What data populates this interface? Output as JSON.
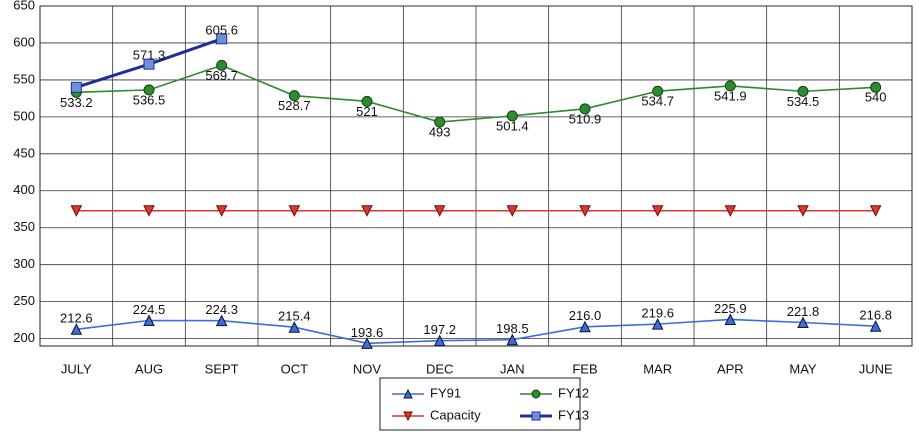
{
  "chart_data": {
    "type": "line",
    "categories": [
      "JULY",
      "AUG",
      "SEPT",
      "OCT",
      "NOV",
      "DEC",
      "JAN",
      "FEB",
      "MAR",
      "APR",
      "MAY",
      "JUNE"
    ],
    "series": [
      {
        "name": "FY91",
        "color": "#3a6fd8",
        "marker": "triangle",
        "values": [
          212.6,
          224.5,
          224.3,
          215.4,
          193.6,
          197.2,
          198.5,
          216.0,
          219.6,
          225.9,
          221.8,
          216.8
        ],
        "value_labels": [
          "212.6",
          "224.5",
          "224.3",
          "215.4",
          "193.6",
          "197.2",
          "198.5",
          "216.0",
          "219.6",
          "225.9",
          "221.8",
          "216.8"
        ]
      },
      {
        "name": "FY12",
        "color": "#2e8b2e",
        "marker": "circle",
        "values": [
          533.2,
          536.5,
          569.7,
          528.7,
          521,
          493,
          501.4,
          510.9,
          534.7,
          541.9,
          534.5,
          540
        ],
        "value_labels": [
          "533.2",
          "536.5",
          "569.7",
          "528.7",
          "521",
          "493",
          "501.4",
          "510.9",
          "534.7",
          "541.9",
          "534.5",
          "540"
        ]
      },
      {
        "name": "Capacity",
        "color": "#e0352b",
        "marker": "triangle-down",
        "values": [
          373,
          373,
          373,
          373,
          373,
          373,
          373,
          373,
          373,
          373,
          373,
          373
        ]
      },
      {
        "name": "FY13",
        "color": "#1f2f9a",
        "marker": "square",
        "values": [
          540,
          571.3,
          605.6,
          null,
          null,
          null,
          null,
          null,
          null,
          null,
          null,
          null
        ],
        "value_labels": [
          null,
          "571.3",
          "605.6",
          null,
          null,
          null,
          null,
          null,
          null,
          null,
          null,
          null
        ]
      }
    ],
    "ylim": [
      190,
      650
    ],
    "yticks": [
      200,
      250,
      300,
      350,
      400,
      450,
      500,
      550,
      600,
      650
    ],
    "grid": true
  }
}
